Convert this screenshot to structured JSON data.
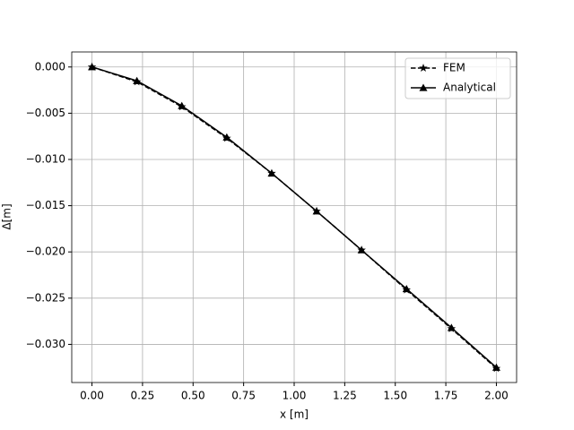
{
  "chart_data": {
    "type": "line",
    "xlabel": "x [m]",
    "ylabel": "Δ[m]",
    "x": [
      0,
      0.2222,
      0.4444,
      0.6667,
      0.8889,
      1.1111,
      1.3333,
      1.5556,
      1.7778,
      2.0
    ],
    "series": [
      {
        "name": "FEM",
        "color": "#000000",
        "dash": true,
        "marker": "star",
        "values": [
          0,
          -0.0016,
          -0.0043,
          -0.0077,
          -0.0115,
          -0.0156,
          -0.0198,
          -0.0241,
          -0.0283,
          -0.0326
        ]
      },
      {
        "name": "Analytical",
        "color": "#000000",
        "dash": false,
        "marker": "triangle",
        "values": [
          0,
          -0.0015,
          -0.0042,
          -0.0076,
          -0.0115,
          -0.0156,
          -0.0198,
          -0.024,
          -0.0282,
          -0.0325
        ]
      }
    ],
    "xlim": [
      -0.1,
      2.1
    ],
    "xticks": [
      {
        "value": 0,
        "label": "0.00"
      },
      {
        "value": 0.25,
        "label": "0.25"
      },
      {
        "value": 0.5,
        "label": "0.50"
      },
      {
        "value": 0.75,
        "label": "0.75"
      },
      {
        "value": 1.0,
        "label": "1.00"
      },
      {
        "value": 1.25,
        "label": "1.25"
      },
      {
        "value": 1.5,
        "label": "1.50"
      },
      {
        "value": 1.75,
        "label": "1.75"
      },
      {
        "value": 2.0,
        "label": "2.00"
      }
    ],
    "ylim": [
      -0.034125,
      0.001625
    ],
    "yticks": [
      {
        "value": 0,
        "label": "0.000"
      },
      {
        "value": -0.005,
        "label": "−0.005"
      },
      {
        "value": -0.01,
        "label": "−0.010"
      },
      {
        "value": -0.015,
        "label": "−0.015"
      },
      {
        "value": -0.02,
        "label": "−0.020"
      },
      {
        "value": -0.025,
        "label": "−0.025"
      },
      {
        "value": -0.03,
        "label": "−0.030"
      }
    ],
    "grid": true,
    "legend": "upper-right"
  }
}
